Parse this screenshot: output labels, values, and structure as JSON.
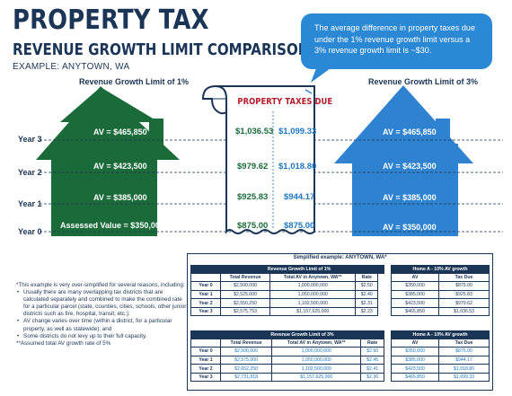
{
  "header": {
    "title": "PROPERTY TAX",
    "subtitle": "REVENUE GROWTH LIMIT COMPARISON",
    "example": "EXAMPLE: ANYTOWN, WA"
  },
  "callout": "The average difference in property taxes due under the 1% revenue growth limit versus a 3% revenue growth limit is ~$30.",
  "labels": {
    "left_house": "Revenue Growth Limit of 1%",
    "right_house": "Revenue Growth Limit of 3%",
    "years": [
      "Year 3",
      "Year 2",
      "Year 1",
      "Year 0"
    ]
  },
  "left_house_values": [
    "AV = $465,850",
    "AV = $423,500",
    "AV = $385,000",
    "Assessed Value = $350,000"
  ],
  "right_house_values": [
    "AV = $465,850",
    "AV = $423,500",
    "AV = $385,000",
    "AV = $350,000"
  ],
  "receipt": {
    "title": "PROPERTY TAXES DUE",
    "left": [
      "$1,036.53",
      "$979.62",
      "$925.83",
      "$875.00"
    ],
    "right": [
      "$1,099.33",
      "$1,018.80",
      "$944.17",
      "$875.00"
    ]
  },
  "notes": {
    "intro": "*This example is very over-simplified for several reasons, including:",
    "bullets": [
      "Usually there are many overlapping tax districts that are calculated separately and combined to make the combined rate for a particular parcel (state, counties, cities, schools, other junior districts such as fire, hospital, transit, etc.);",
      "AV change varies over time (within a district, for a particular property, as well as statewide); and",
      "Some districts do not levy up to their full capacity."
    ],
    "footer": "**Assumed total AV growth rate of 5%"
  },
  "table": {
    "title": "Simplified example: ANYTOWN, WA*",
    "section1": {
      "header": "Revenue Growth Limit of 1%",
      "home_header": "Home A - 10% AV growth",
      "cols": [
        "Total Revenue",
        "Total AV in Anytown, WA**",
        "Rate",
        "AV",
        "Tax Due"
      ],
      "rows": [
        [
          "Year 0",
          "$2,500,000",
          "1,000,000,000",
          "$2.50",
          "$350,000",
          "$875.00"
        ],
        [
          "Year 1",
          "$2,525,000",
          "1,050,000,000",
          "$2.40",
          "$385,000",
          "$925.83"
        ],
        [
          "Year 2",
          "$2,550,250",
          "1,102,500,000",
          "$2.31",
          "$423,500",
          "$979.62"
        ],
        [
          "Year 3",
          "$2,575,753",
          "$1,157,625,000",
          "$2.23",
          "$465,850",
          "$1,036.53"
        ]
      ]
    },
    "section2": {
      "header": "Revenue Growth Limit of 3%",
      "home_header": "Home A - 10% AV growth",
      "cols": [
        "Total Revenue",
        "Total AV in Anytown, WA**",
        "Rate",
        "AV",
        "Tax Due"
      ],
      "rows": [
        [
          "Year 0",
          "$2,500,000",
          "1,000,000,000",
          "$2.50",
          "$350,000",
          "$875.00"
        ],
        [
          "Year 1",
          "$2,575,000",
          "1,050,000,000",
          "$2.45",
          "$385,000",
          "$944.17"
        ],
        [
          "Year 2",
          "$2,652,250",
          "1,102,500,000",
          "$2.41",
          "$423,500",
          "$1,018.80"
        ],
        [
          "Year 3",
          "$2,731,818",
          "$1,157,625,000",
          "$2.36",
          "$465,850",
          "$1,099.33"
        ]
      ]
    }
  },
  "colors": {
    "navy": "#1b3557",
    "green_house": "#1b6b3a",
    "blue_house": "#2f82cf",
    "callout": "#2a88d4",
    "receipt_title": "#b51c2c"
  }
}
